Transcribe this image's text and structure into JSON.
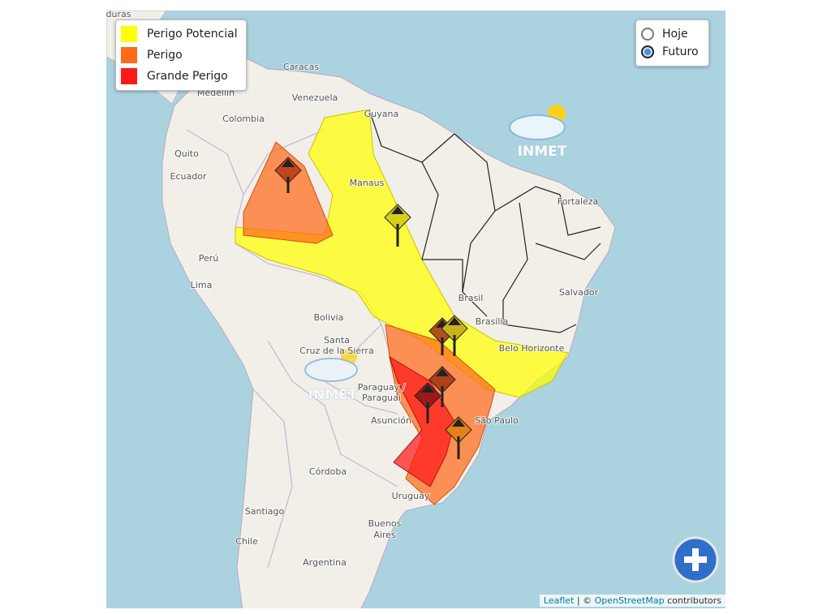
{
  "legend": {
    "items": [
      "Perigo Potencial",
      "Perigo",
      "Grande Perigo"
    ],
    "colors": [
      "#ffff00",
      "#ff6a1a",
      "#ff1a1a"
    ]
  },
  "time_toggle": {
    "options": [
      "Hoje",
      "Futuro"
    ],
    "selected_index": 1
  },
  "watermarks": [
    "INMET",
    "INMET"
  ],
  "map_labels": [
    "duras",
    "Caracas",
    "Medellín",
    "Venezuela",
    "Colombia",
    "Quito",
    "Ecuador",
    "Manaus",
    "Guyana",
    "Fortaleza",
    "Perú",
    "Lima",
    "Bolivia",
    "Salvador",
    "Brasil",
    "Brasília",
    "Belo Horizonte",
    "Santa",
    "Cruz de la Sierra",
    "Paraguay /",
    "Paraguai",
    "Asunción",
    "São Paulo",
    "Córdoba",
    "Uruguay",
    "Santiago",
    "Buenos",
    "Aires",
    "Chile",
    "Argentina"
  ],
  "attribution": {
    "library": "Leaflet",
    "separator": "|",
    "copyright": "©",
    "source": "OpenStreetMap",
    "suffix": "contributors"
  }
}
